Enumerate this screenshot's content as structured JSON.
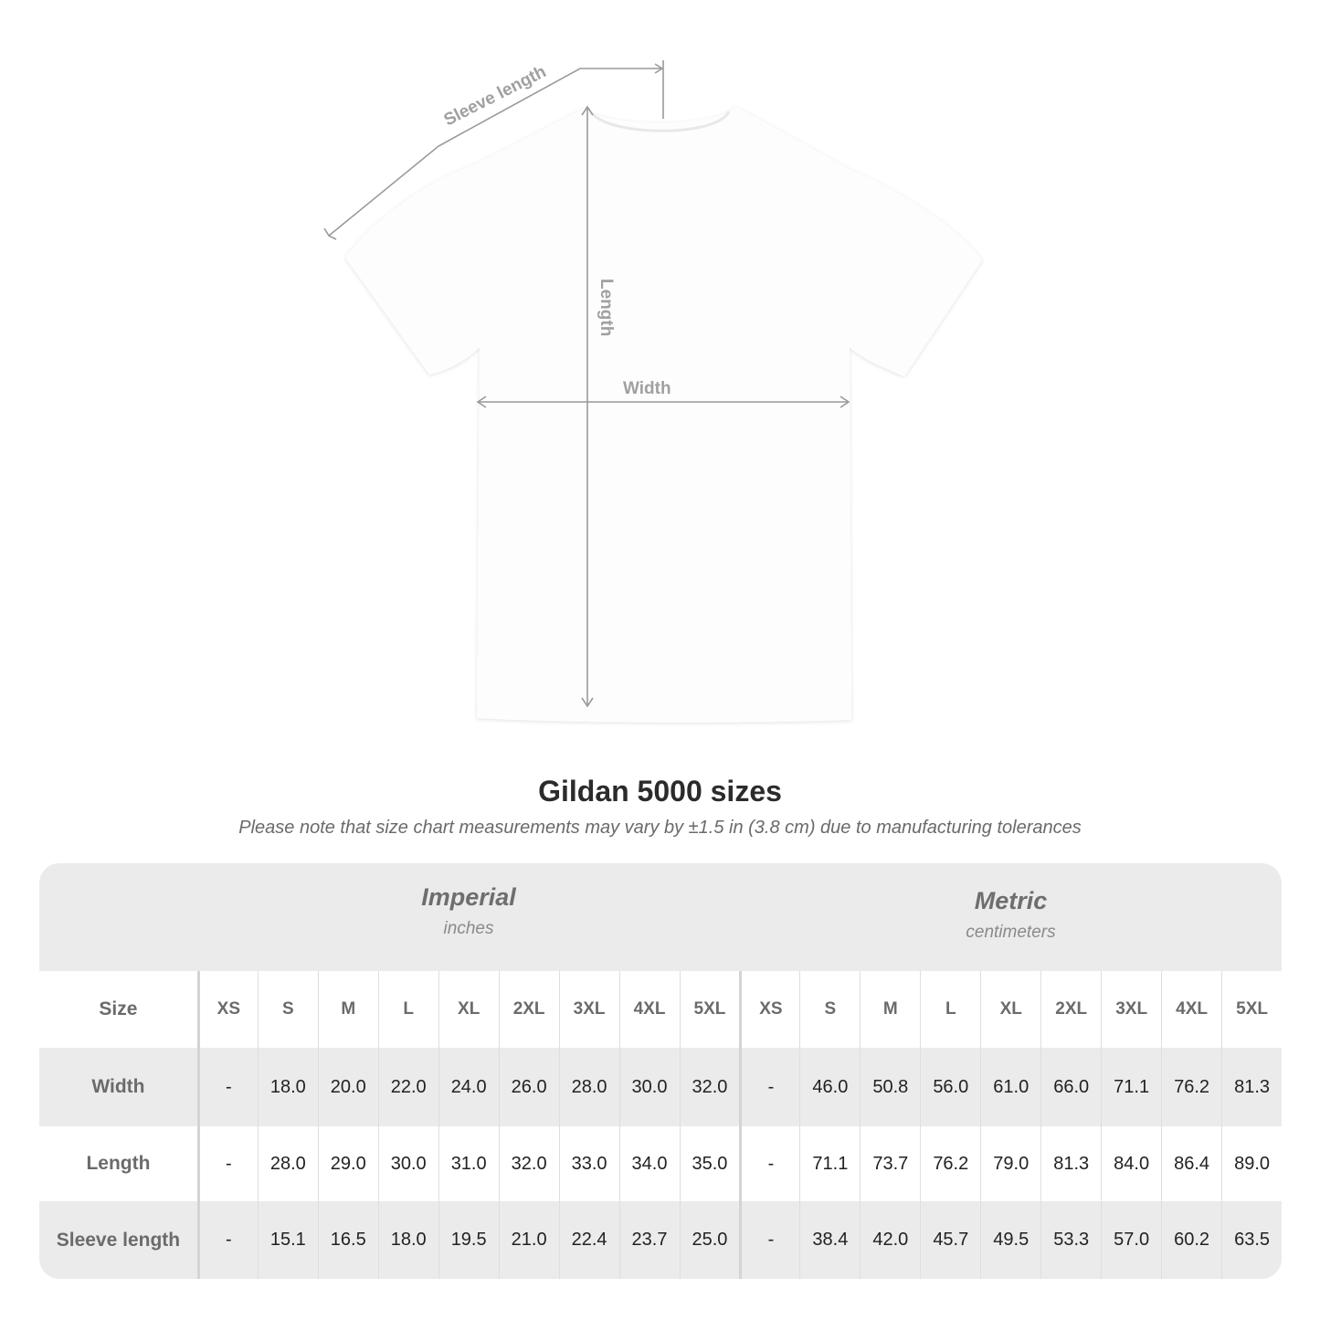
{
  "diagram": {
    "labels": {
      "sleeve": "Sleeve length",
      "length": "Length",
      "width": "Width"
    }
  },
  "title": "Gildan 5000 sizes",
  "subtitle": "Please note that size chart measurements may vary by ±1.5 in (3.8 cm) due to manufacturing tolerances",
  "table": {
    "imperial": {
      "name": "Imperial",
      "unit": "inches"
    },
    "metric": {
      "name": "Metric",
      "unit": "centimeters"
    },
    "size_label": "Size",
    "sizes": [
      "XS",
      "S",
      "M",
      "L",
      "XL",
      "2XL",
      "3XL",
      "4XL",
      "5XL"
    ],
    "rows": [
      {
        "label": "Width",
        "imperial": [
          "-",
          "18.0",
          "20.0",
          "22.0",
          "24.0",
          "26.0",
          "28.0",
          "30.0",
          "32.0"
        ],
        "metric": [
          "-",
          "46.0",
          "50.8",
          "56.0",
          "61.0",
          "66.0",
          "71.1",
          "76.2",
          "81.3"
        ]
      },
      {
        "label": "Length",
        "imperial": [
          "-",
          "28.0",
          "29.0",
          "30.0",
          "31.0",
          "32.0",
          "33.0",
          "34.0",
          "35.0"
        ],
        "metric": [
          "-",
          "71.1",
          "73.7",
          "76.2",
          "79.0",
          "81.3",
          "84.0",
          "86.4",
          "89.0"
        ]
      },
      {
        "label": "Sleeve length",
        "imperial": [
          "-",
          "15.1",
          "16.5",
          "18.0",
          "19.5",
          "21.0",
          "22.4",
          "23.7",
          "25.0"
        ],
        "metric": [
          "-",
          "38.4",
          "42.0",
          "45.7",
          "49.5",
          "53.3",
          "57.0",
          "60.2",
          "63.5"
        ]
      }
    ]
  },
  "colors": {
    "band_gray": "#ebebeb",
    "label_gray": "#6b6b6b",
    "dimension_lines": "#999999"
  }
}
